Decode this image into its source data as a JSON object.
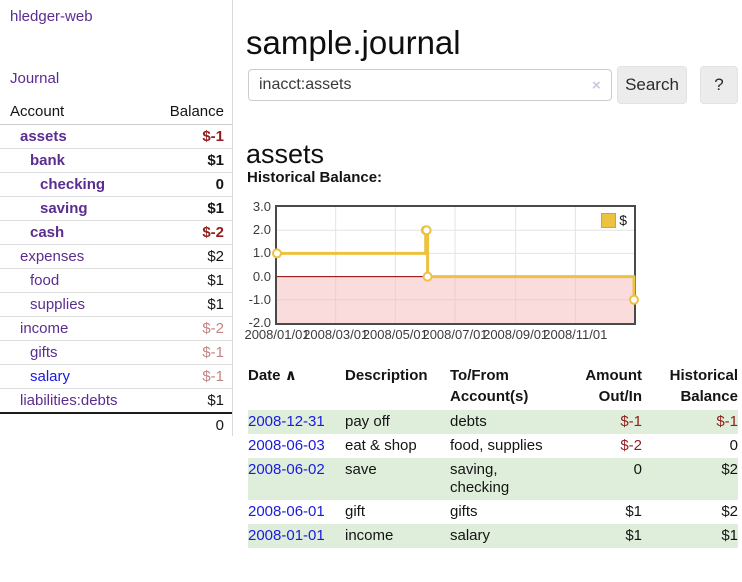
{
  "app": {
    "title": "hledger-web"
  },
  "sidebar": {
    "nav": {
      "journal_label": "Journal"
    },
    "accounts_table": {
      "col_account": "Account",
      "col_balance": "Balance",
      "rows": [
        {
          "name": "assets",
          "balance": "$-1",
          "depth": 1,
          "bold": true,
          "balance_class": "neg-bold"
        },
        {
          "name": "bank",
          "balance": "$1",
          "depth": 2,
          "bold": true,
          "balance_class": "bold"
        },
        {
          "name": "checking",
          "balance": "0",
          "depth": 3,
          "bold": true,
          "balance_class": "bold"
        },
        {
          "name": "saving",
          "balance": "$1",
          "depth": 3,
          "bold": true,
          "balance_class": "bold"
        },
        {
          "name": "cash",
          "balance": "$-2",
          "depth": 2,
          "bold": true,
          "balance_class": "neg-bold"
        },
        {
          "name": "expenses",
          "balance": "$2",
          "depth": 1,
          "bold": false,
          "balance_class": "plain"
        },
        {
          "name": "food",
          "balance": "$1",
          "depth": 2,
          "bold": false,
          "balance_class": "plain"
        },
        {
          "name": "supplies",
          "balance": "$1",
          "depth": 2,
          "bold": false,
          "balance_class": "plain"
        },
        {
          "name": "income",
          "balance": "$-2",
          "depth": 1,
          "bold": false,
          "balance_class": "neg-soft"
        },
        {
          "name": "gifts",
          "balance": "$-1",
          "depth": 2,
          "bold": false,
          "balance_class": "neg-soft"
        },
        {
          "name": "salary",
          "balance": "$-1",
          "depth": 2,
          "bold": false,
          "balance_class": "neg-soft",
          "link_color": "blue"
        },
        {
          "name": "liabilities:debts",
          "balance": "$1",
          "depth": 1,
          "bold": false,
          "balance_class": "plain"
        }
      ],
      "total": "0"
    }
  },
  "header": {
    "title": "sample.journal"
  },
  "search": {
    "value": "inacct:assets",
    "clear_icon": "×",
    "search_button": "Search",
    "help_button": "?"
  },
  "account_page": {
    "heading": "assets",
    "chart_label": "Historical Balance:"
  },
  "chart_data": {
    "type": "line",
    "step": true,
    "title": "Historical Balance:",
    "x_domain": [
      "2008-01-01",
      "2008-12-31"
    ],
    "ylim": [
      -2,
      3
    ],
    "series": [
      {
        "name": "$",
        "color": "#edc240",
        "points": [
          [
            "2008-01-01",
            1
          ],
          [
            "2008-06-01",
            2
          ],
          [
            "2008-06-02",
            2
          ],
          [
            "2008-06-03",
            0
          ],
          [
            "2008-12-31",
            -1
          ]
        ]
      }
    ],
    "yticks": [
      3,
      2,
      1,
      0,
      -1,
      -2
    ],
    "ytick_labels": [
      "3.0",
      "2.0",
      "1.0",
      "0.0",
      "-1.0",
      "-2.0"
    ],
    "xtick_labels": [
      "2008/01/01",
      "2008/03/01",
      "2008/05/01",
      "2008/07/01",
      "2008/09/01",
      "2008/11/01"
    ],
    "legend": {
      "label": "$",
      "position": "top-right"
    },
    "colors": {
      "series": "#edc240",
      "zero_line": "#8b0000",
      "negative_fill": "#f5baba",
      "grid": "#e3e3e3",
      "legend_box_border": "#cfa72e"
    }
  },
  "register": {
    "headers": [
      {
        "label": "Date"
      },
      {
        "label": "Description"
      },
      {
        "label": "To/From Account(s)"
      },
      {
        "label": "Amount Out/In"
      },
      {
        "label": "Historical Balance"
      }
    ],
    "sort_icon": "∧",
    "rows": [
      {
        "date": "2008-12-31",
        "description": "pay off",
        "accounts": "debts",
        "amount": "$-1",
        "amount_negative": true,
        "balance": "$-1",
        "balance_negative": true,
        "shaded": true
      },
      {
        "date": "2008-06-03",
        "description": "eat & shop",
        "accounts": "food, supplies",
        "amount": "$-2",
        "amount_negative": true,
        "balance": "0",
        "balance_negative": false,
        "shaded": false
      },
      {
        "date": "2008-06-02",
        "description": "save",
        "accounts": "saving, checking",
        "amount": "0",
        "amount_negative": false,
        "balance": "$2",
        "balance_negative": false,
        "shaded": true
      },
      {
        "date": "2008-06-01",
        "description": "gift",
        "accounts": "gifts",
        "amount": "$1",
        "amount_negative": false,
        "balance": "$2",
        "balance_negative": false,
        "shaded": false
      },
      {
        "date": "2008-01-01",
        "description": "income",
        "accounts": "salary",
        "amount": "$1",
        "amount_negative": false,
        "balance": "$1",
        "balance_negative": false,
        "shaded": true
      }
    ]
  }
}
